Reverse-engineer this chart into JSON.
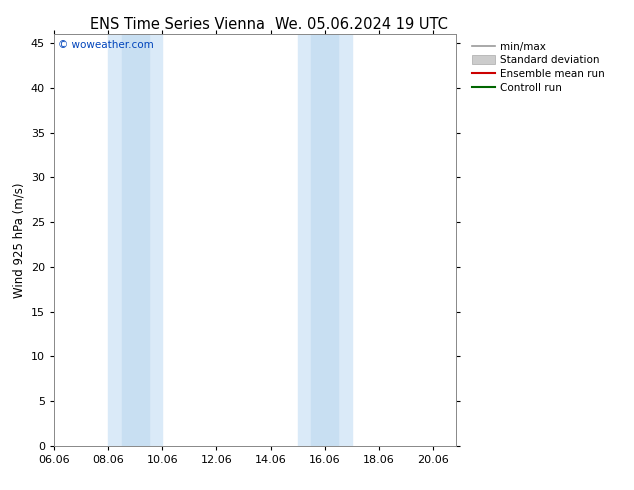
{
  "title": "ENS Time Series Vienna",
  "title2": "We. 05.06.2024 19 UTC",
  "ylabel": "Wind 925 hPa (m/s)",
  "watermark": "© woweather.com",
  "ylim": [
    0,
    46
  ],
  "yticks": [
    0,
    5,
    10,
    15,
    20,
    25,
    30,
    35,
    40,
    45
  ],
  "xtick_labels": [
    "06.06",
    "08.06",
    "10.06",
    "12.06",
    "14.06",
    "16.06",
    "18.06",
    "20.06"
  ],
  "xtick_positions": [
    0,
    2,
    4,
    6,
    8,
    10,
    12,
    14
  ],
  "xlim": [
    0,
    14.857
  ],
  "shaded_bands": [
    {
      "xmin": 2.0,
      "xmax": 4.0,
      "inner_xmin": 2.5,
      "inner_xmax": 3.5
    },
    {
      "xmin": 9.0,
      "xmax": 11.0,
      "inner_xmin": 9.5,
      "inner_xmax": 10.5
    }
  ],
  "shade_color_outer": "#daeaf8",
  "shade_color_inner": "#c8dff2",
  "background_color": "#ffffff",
  "legend_items": [
    {
      "label": "min/max",
      "color": "#999999",
      "lw": 1.2,
      "style": "-"
    },
    {
      "label": "Standard deviation",
      "color": "#cccccc",
      "lw": 6,
      "style": "-"
    },
    {
      "label": "Ensemble mean run",
      "color": "#cc0000",
      "lw": 1.5,
      "style": "-"
    },
    {
      "label": "Controll run",
      "color": "#006600",
      "lw": 1.5,
      "style": "-"
    }
  ],
  "title_fontsize": 10.5,
  "axis_fontsize": 8.5,
  "tick_fontsize": 8,
  "watermark_color": "#0044bb",
  "border_color": "#888888",
  "legend_fontsize": 7.5
}
